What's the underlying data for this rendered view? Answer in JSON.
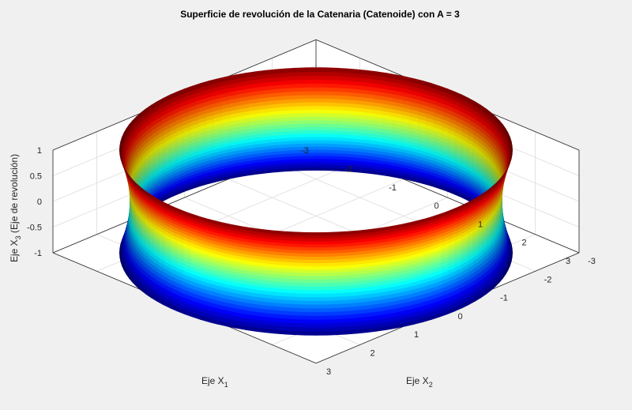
{
  "chart_data": {
    "type": "surface3d",
    "title": "Superficie de revolución de la Catenaria (Catenoide) con A = 3",
    "xlabel": "Eje X",
    "xlabel_sub": "1",
    "ylabel": "Eje X",
    "ylabel_sub": "2",
    "zlabel_pre": "Eje X",
    "zlabel_sub": "3",
    "zlabel_post": " (Eje de revolución)",
    "surface": {
      "equation": "r = A·cosh(x3 / A)",
      "A": 3,
      "x3_range": [
        -1,
        1
      ],
      "colormap": "jet",
      "shading": "interp"
    },
    "xlim": [
      -3,
      3
    ],
    "ylim": [
      -3,
      3
    ],
    "zlim": [
      -1,
      1
    ],
    "x_ticks": [
      "-3",
      "-2",
      "-1",
      "0",
      "1",
      "2",
      "3"
    ],
    "y_ticks": [
      "-3",
      "-2",
      "-1",
      "0",
      "1",
      "2",
      "3"
    ],
    "z_ticks": [
      "-1",
      "-0.5",
      "0",
      "0.5",
      "1"
    ],
    "grid": true,
    "box": true
  }
}
